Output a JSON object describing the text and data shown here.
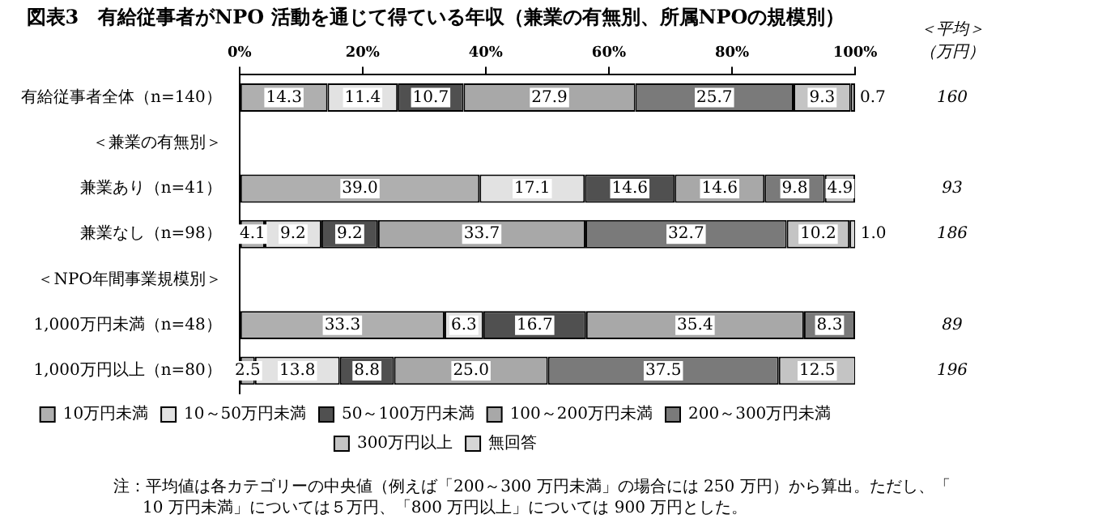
{
  "chart_data": {
    "type": "bar",
    "orientation": "horizontal",
    "stacked": true,
    "title": "図表3　有給従事者がNPO 活動を通じて得ている年収（兼業の有無別、所属NPOの規模別）",
    "categories": [
      "有給従事者全体（n=140）",
      "＜兼業の有無別＞",
      "兼業あり（n=41）",
      "兼業なし（n=98）",
      "＜NPO年間事業規模別＞",
      "1,000万円未満（n=48）",
      "1,000万円以上（n=80）"
    ],
    "xlim": [
      0,
      100
    ],
    "xticks": [
      {
        "value": 0,
        "label": "0%"
      },
      {
        "value": 20,
        "label": "20%"
      },
      {
        "value": 40,
        "label": "40%"
      },
      {
        "value": 60,
        "label": "60%"
      },
      {
        "value": 80,
        "label": "80%"
      },
      {
        "value": 100,
        "label": "100%"
      }
    ],
    "grid": false,
    "legend": "bottom",
    "series": [
      {
        "name": "10万円未満",
        "color": "#afafaf",
        "values": [
          14.3,
          null,
          39.0,
          4.1,
          null,
          33.3,
          2.5
        ],
        "value_labels": [
          "14.3",
          null,
          "39.0",
          "4.1",
          null,
          "33.3",
          "2.5"
        ]
      },
      {
        "name": "10～50万円未満",
        "color": "#e2e2e2",
        "values": [
          11.4,
          null,
          17.1,
          9.2,
          null,
          6.3,
          13.8
        ],
        "value_labels": [
          "11.4",
          null,
          "17.1",
          "9.2",
          null,
          "6.3",
          "13.8"
        ]
      },
      {
        "name": "50～100万円未満",
        "color": "#505050",
        "values": [
          10.7,
          null,
          14.6,
          9.2,
          null,
          16.7,
          8.8
        ],
        "value_labels": [
          "10.7",
          null,
          "14.6",
          "9.2",
          null,
          "16.7",
          "8.8"
        ]
      },
      {
        "name": "100～200万円未満",
        "color": "#a8a8a8",
        "values": [
          27.9,
          null,
          14.6,
          33.7,
          null,
          35.4,
          25.0
        ],
        "value_labels": [
          "27.9",
          null,
          "14.6",
          "33.7",
          null,
          "35.4",
          "25.0"
        ]
      },
      {
        "name": "200～300万円未満",
        "color": "#7a7a7a",
        "values": [
          25.7,
          null,
          9.8,
          32.7,
          null,
          8.3,
          37.5
        ],
        "value_labels": [
          "25.7",
          null,
          "9.8",
          "32.7",
          null,
          "8.3",
          "37.5"
        ]
      },
      {
        "name": "300万円以上",
        "color": "#c4c4c4",
        "values": [
          9.3,
          null,
          4.9,
          10.2,
          null,
          null,
          12.5
        ],
        "value_labels": [
          "9.3",
          null,
          "4.9",
          "10.2",
          null,
          null,
          "12.5"
        ]
      },
      {
        "name": "無回答",
        "color": "#d6d6d6",
        "values": [
          0.7,
          null,
          null,
          1.0,
          null,
          null,
          null
        ],
        "value_labels": [
          "0.7",
          null,
          null,
          "1.0",
          null,
          null,
          null
        ]
      }
    ],
    "annotations": [
      "＜平均＞",
      "（万円）",
      "160",
      "93",
      "186",
      "89",
      "196",
      "注：平均値は各カテゴリーの中央値（例えば「200～300 万円未満」の場合には 250 万円）から算出。ただし、「10 万円未満」については５万円、「800 万円以上」については 900 万円とした。"
    ]
  }
}
